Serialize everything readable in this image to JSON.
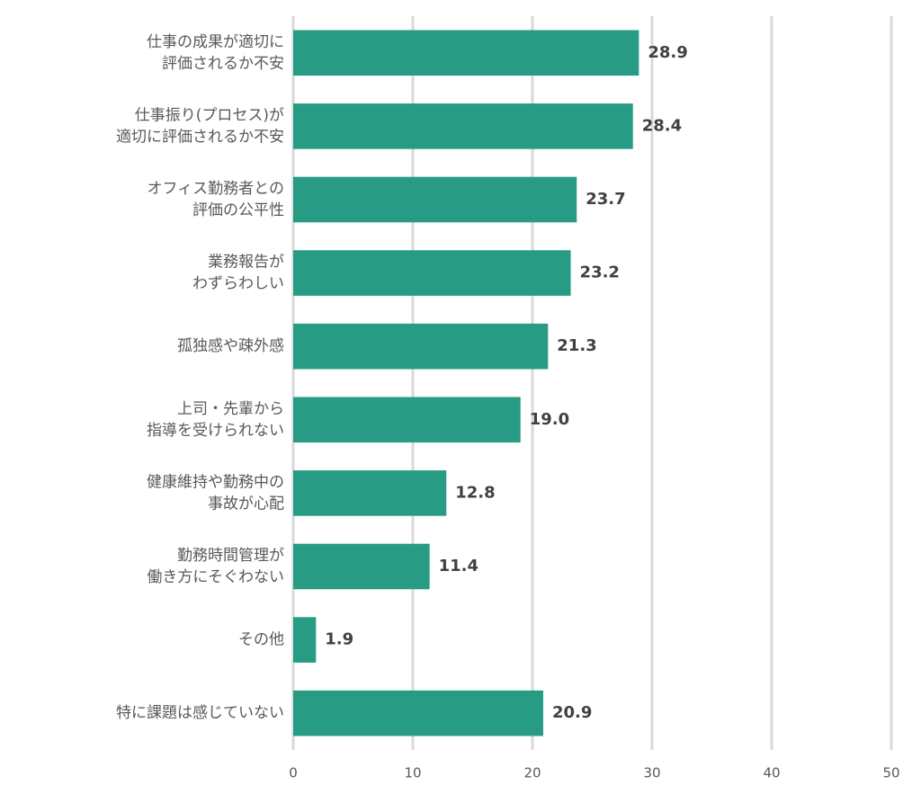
{
  "chart_data": {
    "type": "barh",
    "categories": [
      [
        "仕事の成果が適切に",
        "評価されるか不安"
      ],
      [
        "仕事振り(プロセス)が",
        "適切に評価されるか不安"
      ],
      [
        "オフィス勤務者との",
        "評価の公平性"
      ],
      [
        "業務報告が",
        "わずらわしい"
      ],
      [
        "孤独感や疎外感"
      ],
      [
        "上司・先輩から",
        "指導を受けられない"
      ],
      [
        "健康維持や勤務中の",
        "事故が心配"
      ],
      [
        "勤務時間管理が",
        "働き方にそぐわない"
      ],
      [
        "その他"
      ],
      [
        "特に課題は感じていない"
      ]
    ],
    "values": [
      28.9,
      28.4,
      23.7,
      23.2,
      21.3,
      19.0,
      12.8,
      11.4,
      1.9,
      20.9
    ],
    "value_labels": [
      "28.9",
      "28.4",
      "23.7",
      "23.2",
      "21.3",
      "19.0",
      "12.8",
      "11.4",
      "1.9",
      "20.9"
    ],
    "color": "#279b83",
    "xlim": [
      0,
      50
    ],
    "xticks": [
      0,
      10,
      20,
      30,
      40,
      50
    ],
    "grid": true
  }
}
